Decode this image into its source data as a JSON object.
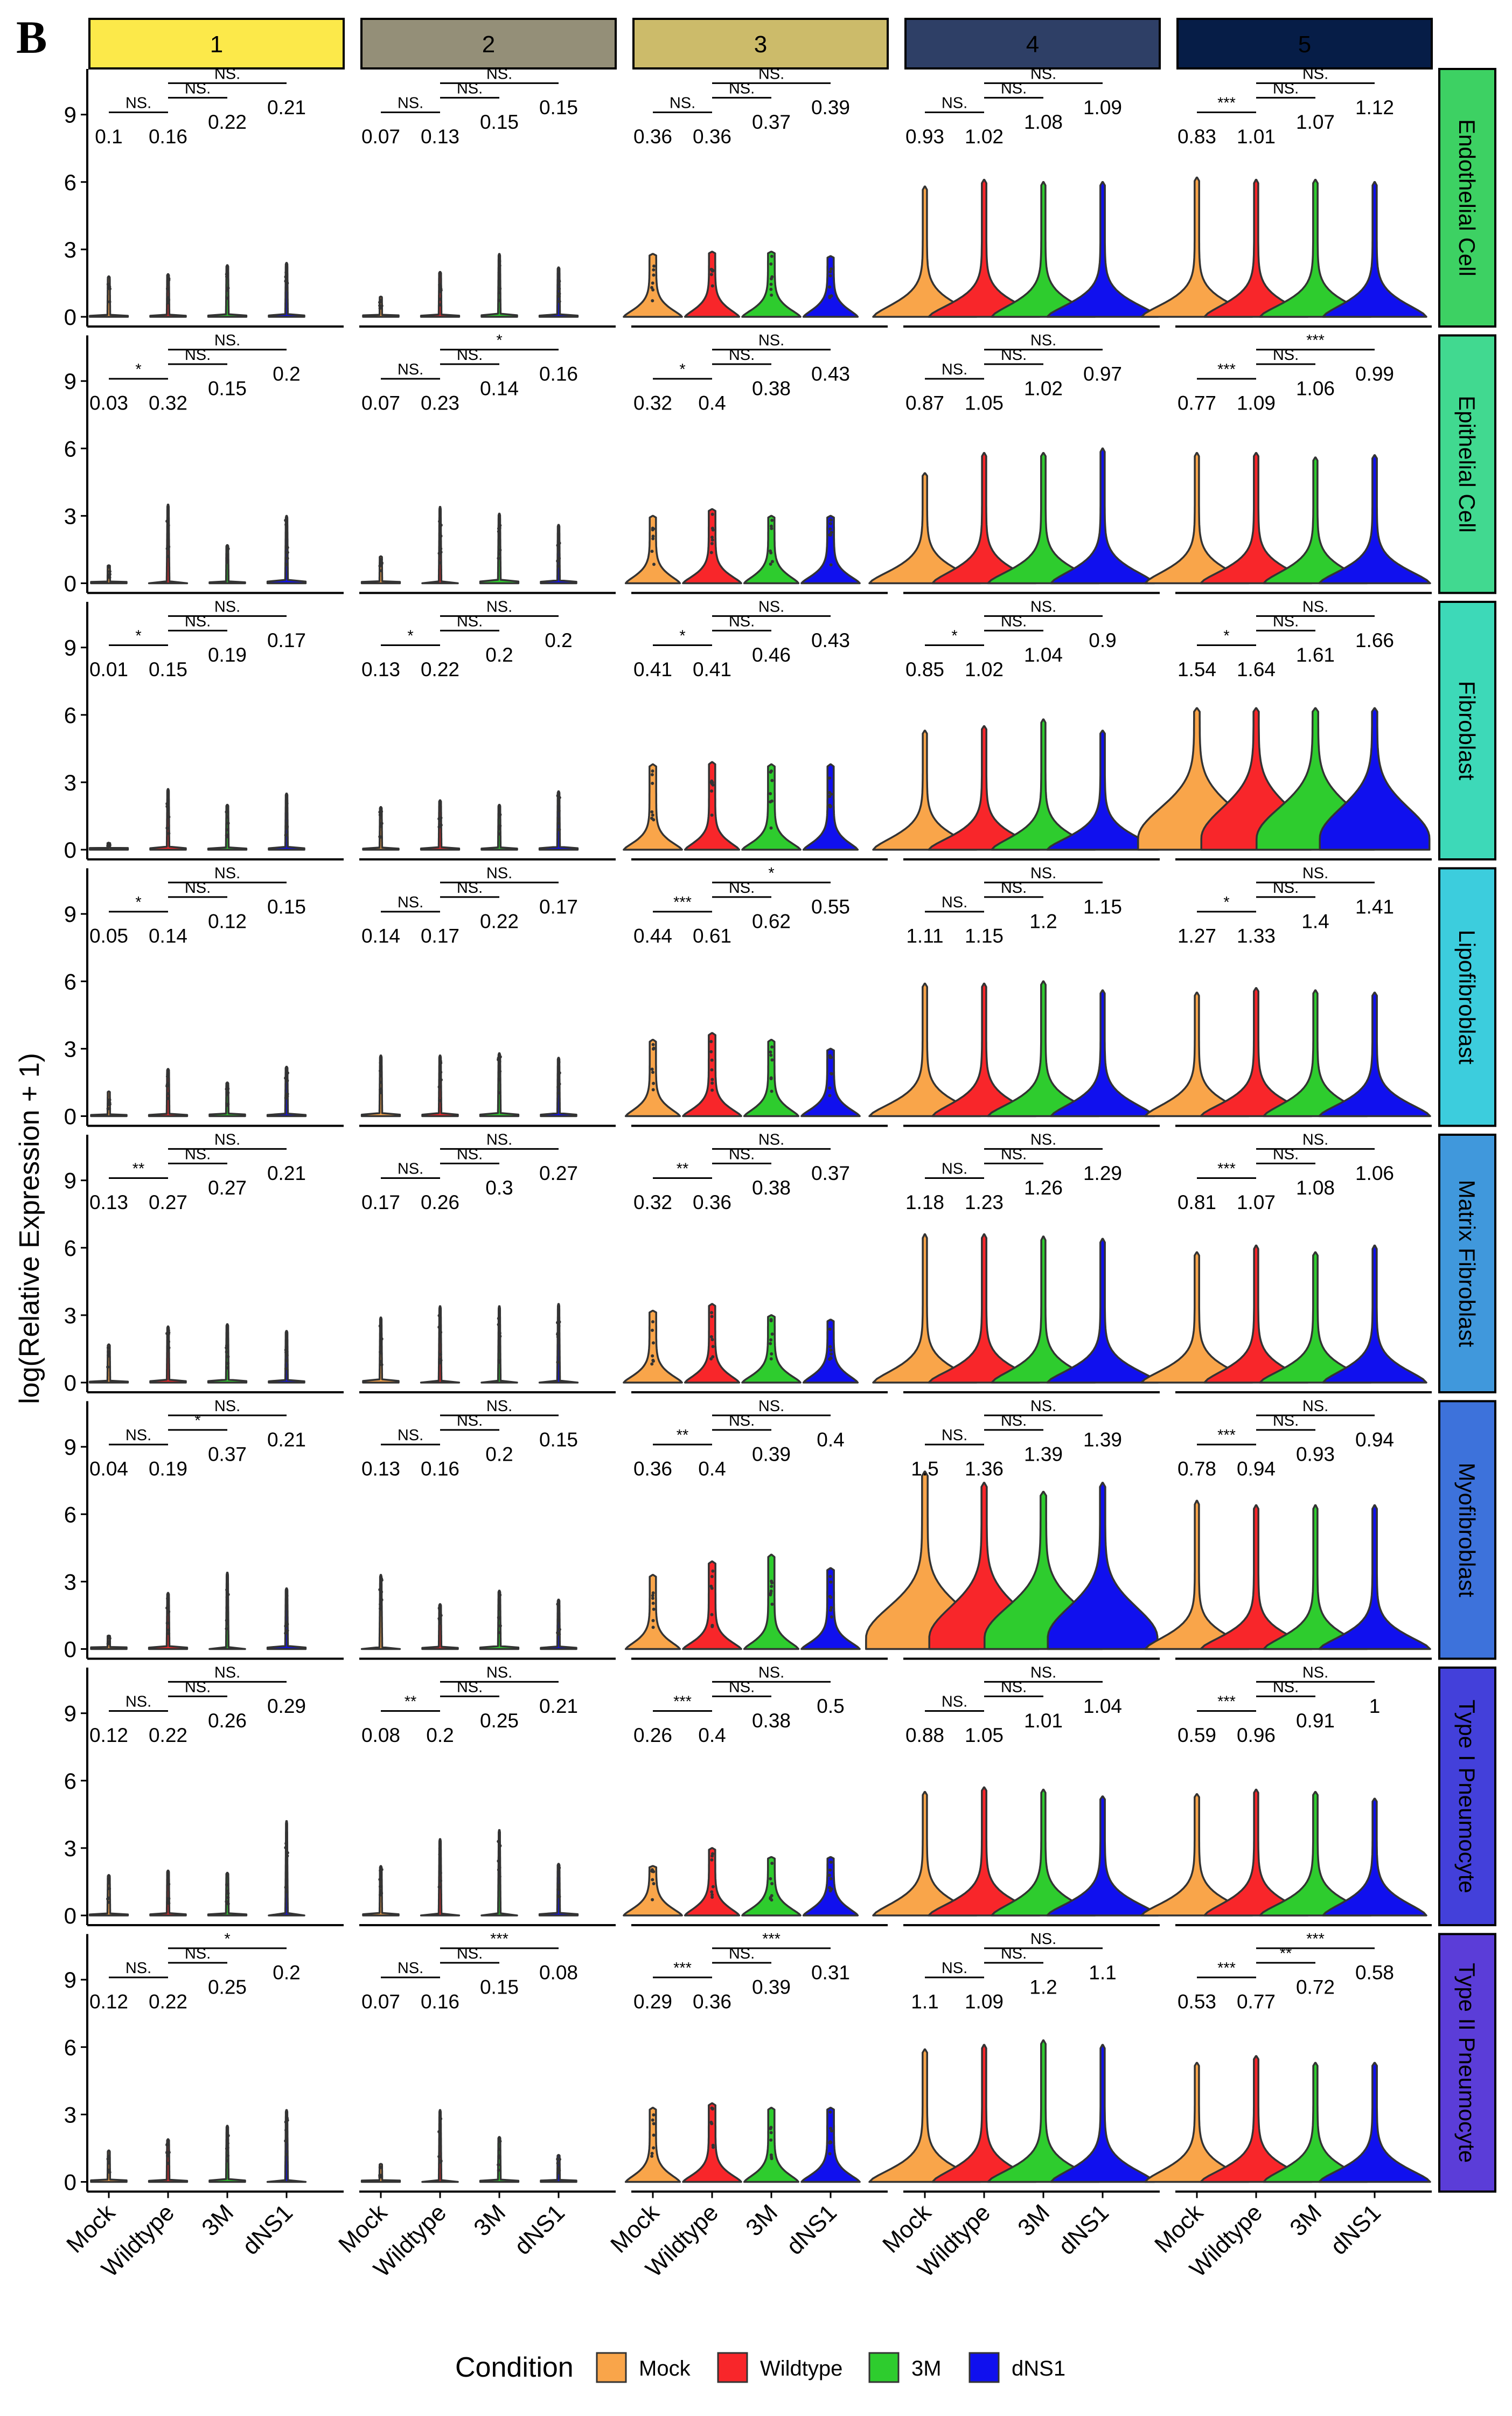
{
  "panel_letter": "B",
  "colors": {
    "Mock": "#F9A54A",
    "Wildtype": "#F8262A",
    "3M": "#2ECC2E",
    "dNS1": "#1010EE"
  },
  "chart_data": {
    "type": "violin",
    "ylabel": "log(Relative Expression + 1)",
    "ylim": [
      0,
      11
    ],
    "yticks": [
      0,
      3,
      6,
      9
    ],
    "conditions": [
      "Mock",
      "Wildtype",
      "3M",
      "dNS1"
    ],
    "legend": {
      "title": "Condition",
      "placement": "bottom",
      "items": [
        "Mock",
        "Wildtype",
        "3M",
        "dNS1"
      ]
    },
    "columns": [
      {
        "label": "1",
        "color": "#FCE94A"
      },
      {
        "label": "2",
        "color": "#948F78"
      },
      {
        "label": "3",
        "color": "#CCBB6A"
      },
      {
        "label": "4",
        "color": "#2E3F66"
      },
      {
        "label": "5",
        "color": "#061D47"
      }
    ],
    "rows": [
      {
        "label": "Endothelial Cell",
        "color": "#3DD163"
      },
      {
        "label": "Epithelial Cell",
        "color": "#41D990"
      },
      {
        "label": "Fibroblast",
        "color": "#3DD9B8"
      },
      {
        "label": "Lipofibroblast",
        "color": "#3CCDDD"
      },
      {
        "label": "Matrix Fibroblast",
        "color": "#4098DC"
      },
      {
        "label": "Myofibroblast",
        "color": "#3D72DB"
      },
      {
        "label": "Type I Pneumocyte",
        "color": "#4340DA"
      },
      {
        "label": "Type II Pneumocyte",
        "color": "#5B3DD8"
      }
    ],
    "panels": [
      [
        {
          "means": [
            0.1,
            0.16,
            0.22,
            0.21
          ],
          "sig": [
            "NS.",
            "NS.",
            "NS."
          ],
          "max": [
            1.8,
            1.9,
            2.3,
            2.4
          ],
          "dense": 0
        },
        {
          "means": [
            0.07,
            0.13,
            0.15,
            0.15
          ],
          "sig": [
            "NS.",
            "NS.",
            "NS."
          ],
          "max": [
            0.9,
            2.0,
            2.8,
            2.2
          ],
          "dense": 0
        },
        {
          "means": [
            0.36,
            0.36,
            0.37,
            0.39
          ],
          "sig": [
            "NS.",
            "NS.",
            "NS."
          ],
          "max": [
            2.8,
            2.9,
            2.9,
            2.7
          ],
          "dense": 1
        },
        {
          "means": [
            0.93,
            1.02,
            1.08,
            1.09
          ],
          "sig": [
            "NS.",
            "NS.",
            "NS."
          ],
          "max": [
            5.8,
            6.1,
            6.0,
            6.0
          ],
          "dense": 2
        },
        {
          "means": [
            0.83,
            1.01,
            1.07,
            1.12
          ],
          "sig": [
            "***",
            "NS.",
            "NS."
          ],
          "max": [
            6.2,
            6.1,
            6.1,
            6.0
          ],
          "dense": 2
        }
      ],
      [
        {
          "means": [
            0.03,
            0.32,
            0.15,
            0.2
          ],
          "sig": [
            "*",
            "NS.",
            "NS."
          ],
          "max": [
            0.8,
            3.5,
            1.7,
            3.0
          ],
          "dense": 0
        },
        {
          "means": [
            0.07,
            0.23,
            0.14,
            0.16
          ],
          "sig": [
            "NS.",
            "NS.",
            "*"
          ],
          "max": [
            1.2,
            3.4,
            3.1,
            2.6
          ],
          "dense": 0
        },
        {
          "means": [
            0.32,
            0.4,
            0.38,
            0.43
          ],
          "sig": [
            "*",
            "NS.",
            "NS."
          ],
          "max": [
            3.0,
            3.3,
            3.0,
            3.0
          ],
          "dense": 1
        },
        {
          "means": [
            0.87,
            1.05,
            1.02,
            0.97
          ],
          "sig": [
            "NS.",
            "NS.",
            "NS."
          ],
          "max": [
            4.9,
            5.8,
            5.8,
            6.0
          ],
          "dense": 2
        },
        {
          "means": [
            0.77,
            1.09,
            1.06,
            0.99
          ],
          "sig": [
            "***",
            "NS.",
            "***"
          ],
          "max": [
            5.8,
            5.8,
            5.6,
            5.7
          ],
          "dense": 2
        }
      ],
      [
        {
          "means": [
            0.01,
            0.15,
            0.19,
            0.17
          ],
          "sig": [
            "*",
            "NS.",
            "NS."
          ],
          "max": [
            0.3,
            2.7,
            2.0,
            2.5
          ],
          "dense": 0
        },
        {
          "means": [
            0.13,
            0.22,
            0.2,
            0.2
          ],
          "sig": [
            "*",
            "NS.",
            "NS."
          ],
          "max": [
            1.9,
            2.2,
            2.0,
            2.6
          ],
          "dense": 0
        },
        {
          "means": [
            0.41,
            0.41,
            0.46,
            0.43
          ],
          "sig": [
            "*",
            "NS.",
            "NS."
          ],
          "max": [
            3.8,
            3.9,
            3.8,
            3.8
          ],
          "dense": 1
        },
        {
          "means": [
            0.85,
            1.02,
            1.04,
            0.9
          ],
          "sig": [
            "*",
            "NS.",
            "NS."
          ],
          "max": [
            5.3,
            5.5,
            5.8,
            5.3
          ],
          "dense": 2
        },
        {
          "means": [
            1.54,
            1.64,
            1.61,
            1.66
          ],
          "sig": [
            "*",
            "NS.",
            "NS."
          ],
          "max": [
            6.3,
            6.3,
            6.3,
            6.3
          ],
          "dense": 3
        }
      ],
      [
        {
          "means": [
            0.05,
            0.14,
            0.12,
            0.15
          ],
          "sig": [
            "*",
            "NS.",
            "NS."
          ],
          "max": [
            1.1,
            2.1,
            1.5,
            2.2
          ],
          "dense": 0
        },
        {
          "means": [
            0.14,
            0.17,
            0.22,
            0.17
          ],
          "sig": [
            "NS.",
            "NS.",
            "NS."
          ],
          "max": [
            2.7,
            2.7,
            2.8,
            2.6
          ],
          "dense": 0
        },
        {
          "means": [
            0.44,
            0.61,
            0.62,
            0.55
          ],
          "sig": [
            "***",
            "NS.",
            "*"
          ],
          "max": [
            3.4,
            3.7,
            3.4,
            3.0
          ],
          "dense": 1
        },
        {
          "means": [
            1.11,
            1.15,
            1.2,
            1.15
          ],
          "sig": [
            "NS.",
            "NS.",
            "NS."
          ],
          "max": [
            5.9,
            5.9,
            6.0,
            5.6
          ],
          "dense": 2
        },
        {
          "means": [
            1.27,
            1.33,
            1.4,
            1.41
          ],
          "sig": [
            "*",
            "NS.",
            "NS."
          ],
          "max": [
            5.5,
            5.7,
            5.6,
            5.5
          ],
          "dense": 2
        }
      ],
      [
        {
          "means": [
            0.13,
            0.27,
            0.27,
            0.21
          ],
          "sig": [
            "**",
            "NS.",
            "NS."
          ],
          "max": [
            1.7,
            2.5,
            2.6,
            2.3
          ],
          "dense": 0
        },
        {
          "means": [
            0.17,
            0.26,
            0.3,
            0.27
          ],
          "sig": [
            "NS.",
            "NS.",
            "NS."
          ],
          "max": [
            2.9,
            3.4,
            3.4,
            3.5
          ],
          "dense": 0
        },
        {
          "means": [
            0.32,
            0.36,
            0.38,
            0.37
          ],
          "sig": [
            "**",
            "NS.",
            "NS."
          ],
          "max": [
            3.2,
            3.5,
            3.0,
            2.8
          ],
          "dense": 1
        },
        {
          "means": [
            1.18,
            1.23,
            1.26,
            1.29
          ],
          "sig": [
            "NS.",
            "NS.",
            "NS."
          ],
          "max": [
            6.6,
            6.6,
            6.5,
            6.4
          ],
          "dense": 2
        },
        {
          "means": [
            0.81,
            1.07,
            1.08,
            1.06
          ],
          "sig": [
            "***",
            "NS.",
            "NS."
          ],
          "max": [
            5.8,
            6.1,
            5.8,
            6.1
          ],
          "dense": 2
        }
      ],
      [
        {
          "means": [
            0.04,
            0.19,
            0.37,
            0.21
          ],
          "sig": [
            "NS.",
            "*",
            "NS."
          ],
          "max": [
            0.6,
            2.5,
            3.4,
            2.7
          ],
          "dense": 0
        },
        {
          "means": [
            0.13,
            0.16,
            0.2,
            0.15
          ],
          "sig": [
            "NS.",
            "NS.",
            "NS."
          ],
          "max": [
            3.3,
            2.0,
            2.6,
            2.2
          ],
          "dense": 0
        },
        {
          "means": [
            0.36,
            0.4,
            0.39,
            0.4
          ],
          "sig": [
            "**",
            "NS.",
            "NS."
          ],
          "max": [
            3.3,
            3.9,
            4.2,
            3.6
          ],
          "dense": 1
        },
        {
          "means": [
            1.5,
            1.36,
            1.39,
            1.39
          ],
          "sig": [
            "NS.",
            "NS.",
            "NS."
          ],
          "max": [
            7.9,
            7.4,
            7.0,
            7.4
          ],
          "dense": 3
        },
        {
          "means": [
            0.78,
            0.94,
            0.93,
            0.94
          ],
          "sig": [
            "***",
            "NS.",
            "NS."
          ],
          "max": [
            6.6,
            6.4,
            6.4,
            6.4
          ],
          "dense": 2
        }
      ],
      [
        {
          "means": [
            0.12,
            0.22,
            0.26,
            0.29
          ],
          "sig": [
            "NS.",
            "NS.",
            "NS."
          ],
          "max": [
            1.8,
            2.0,
            1.9,
            4.2
          ],
          "dense": 0
        },
        {
          "means": [
            0.08,
            0.2,
            0.25,
            0.21
          ],
          "sig": [
            "**",
            "NS.",
            "NS."
          ],
          "max": [
            2.2,
            3.4,
            3.8,
            2.3
          ],
          "dense": 0
        },
        {
          "means": [
            0.26,
            0.4,
            0.38,
            0.5
          ],
          "sig": [
            "***",
            "NS.",
            "NS."
          ],
          "max": [
            2.2,
            3.0,
            2.6,
            2.6
          ],
          "dense": 1
        },
        {
          "means": [
            0.88,
            1.05,
            1.01,
            1.04
          ],
          "sig": [
            "NS.",
            "NS.",
            "NS."
          ],
          "max": [
            5.5,
            5.7,
            5.6,
            5.3
          ],
          "dense": 2
        },
        {
          "means": [
            0.59,
            0.96,
            0.91,
            1.0
          ],
          "sig": [
            "***",
            "NS.",
            "NS."
          ],
          "max": [
            5.4,
            5.6,
            5.5,
            5.2
          ],
          "dense": 2
        }
      ],
      [
        {
          "means": [
            0.12,
            0.22,
            0.25,
            0.2
          ],
          "sig": [
            "NS.",
            "NS.",
            "*"
          ],
          "max": [
            1.4,
            1.9,
            2.5,
            3.2
          ],
          "dense": 0
        },
        {
          "means": [
            0.07,
            0.16,
            0.15,
            0.08
          ],
          "sig": [
            "NS.",
            "NS.",
            "***"
          ],
          "max": [
            0.8,
            3.2,
            2.0,
            1.2
          ],
          "dense": 0
        },
        {
          "means": [
            0.29,
            0.36,
            0.39,
            0.31
          ],
          "sig": [
            "***",
            "NS.",
            "***"
          ],
          "max": [
            3.3,
            3.5,
            3.3,
            3.3
          ],
          "dense": 1
        },
        {
          "means": [
            1.1,
            1.09,
            1.2,
            1.1
          ],
          "sig": [
            "NS.",
            "NS.",
            "NS."
          ],
          "max": [
            5.9,
            6.1,
            6.3,
            6.1
          ],
          "dense": 2
        },
        {
          "means": [
            0.53,
            0.77,
            0.72,
            0.58
          ],
          "sig": [
            "***",
            "**",
            "***"
          ],
          "max": [
            5.3,
            5.6,
            5.3,
            5.3
          ],
          "dense": 2
        }
      ]
    ]
  }
}
